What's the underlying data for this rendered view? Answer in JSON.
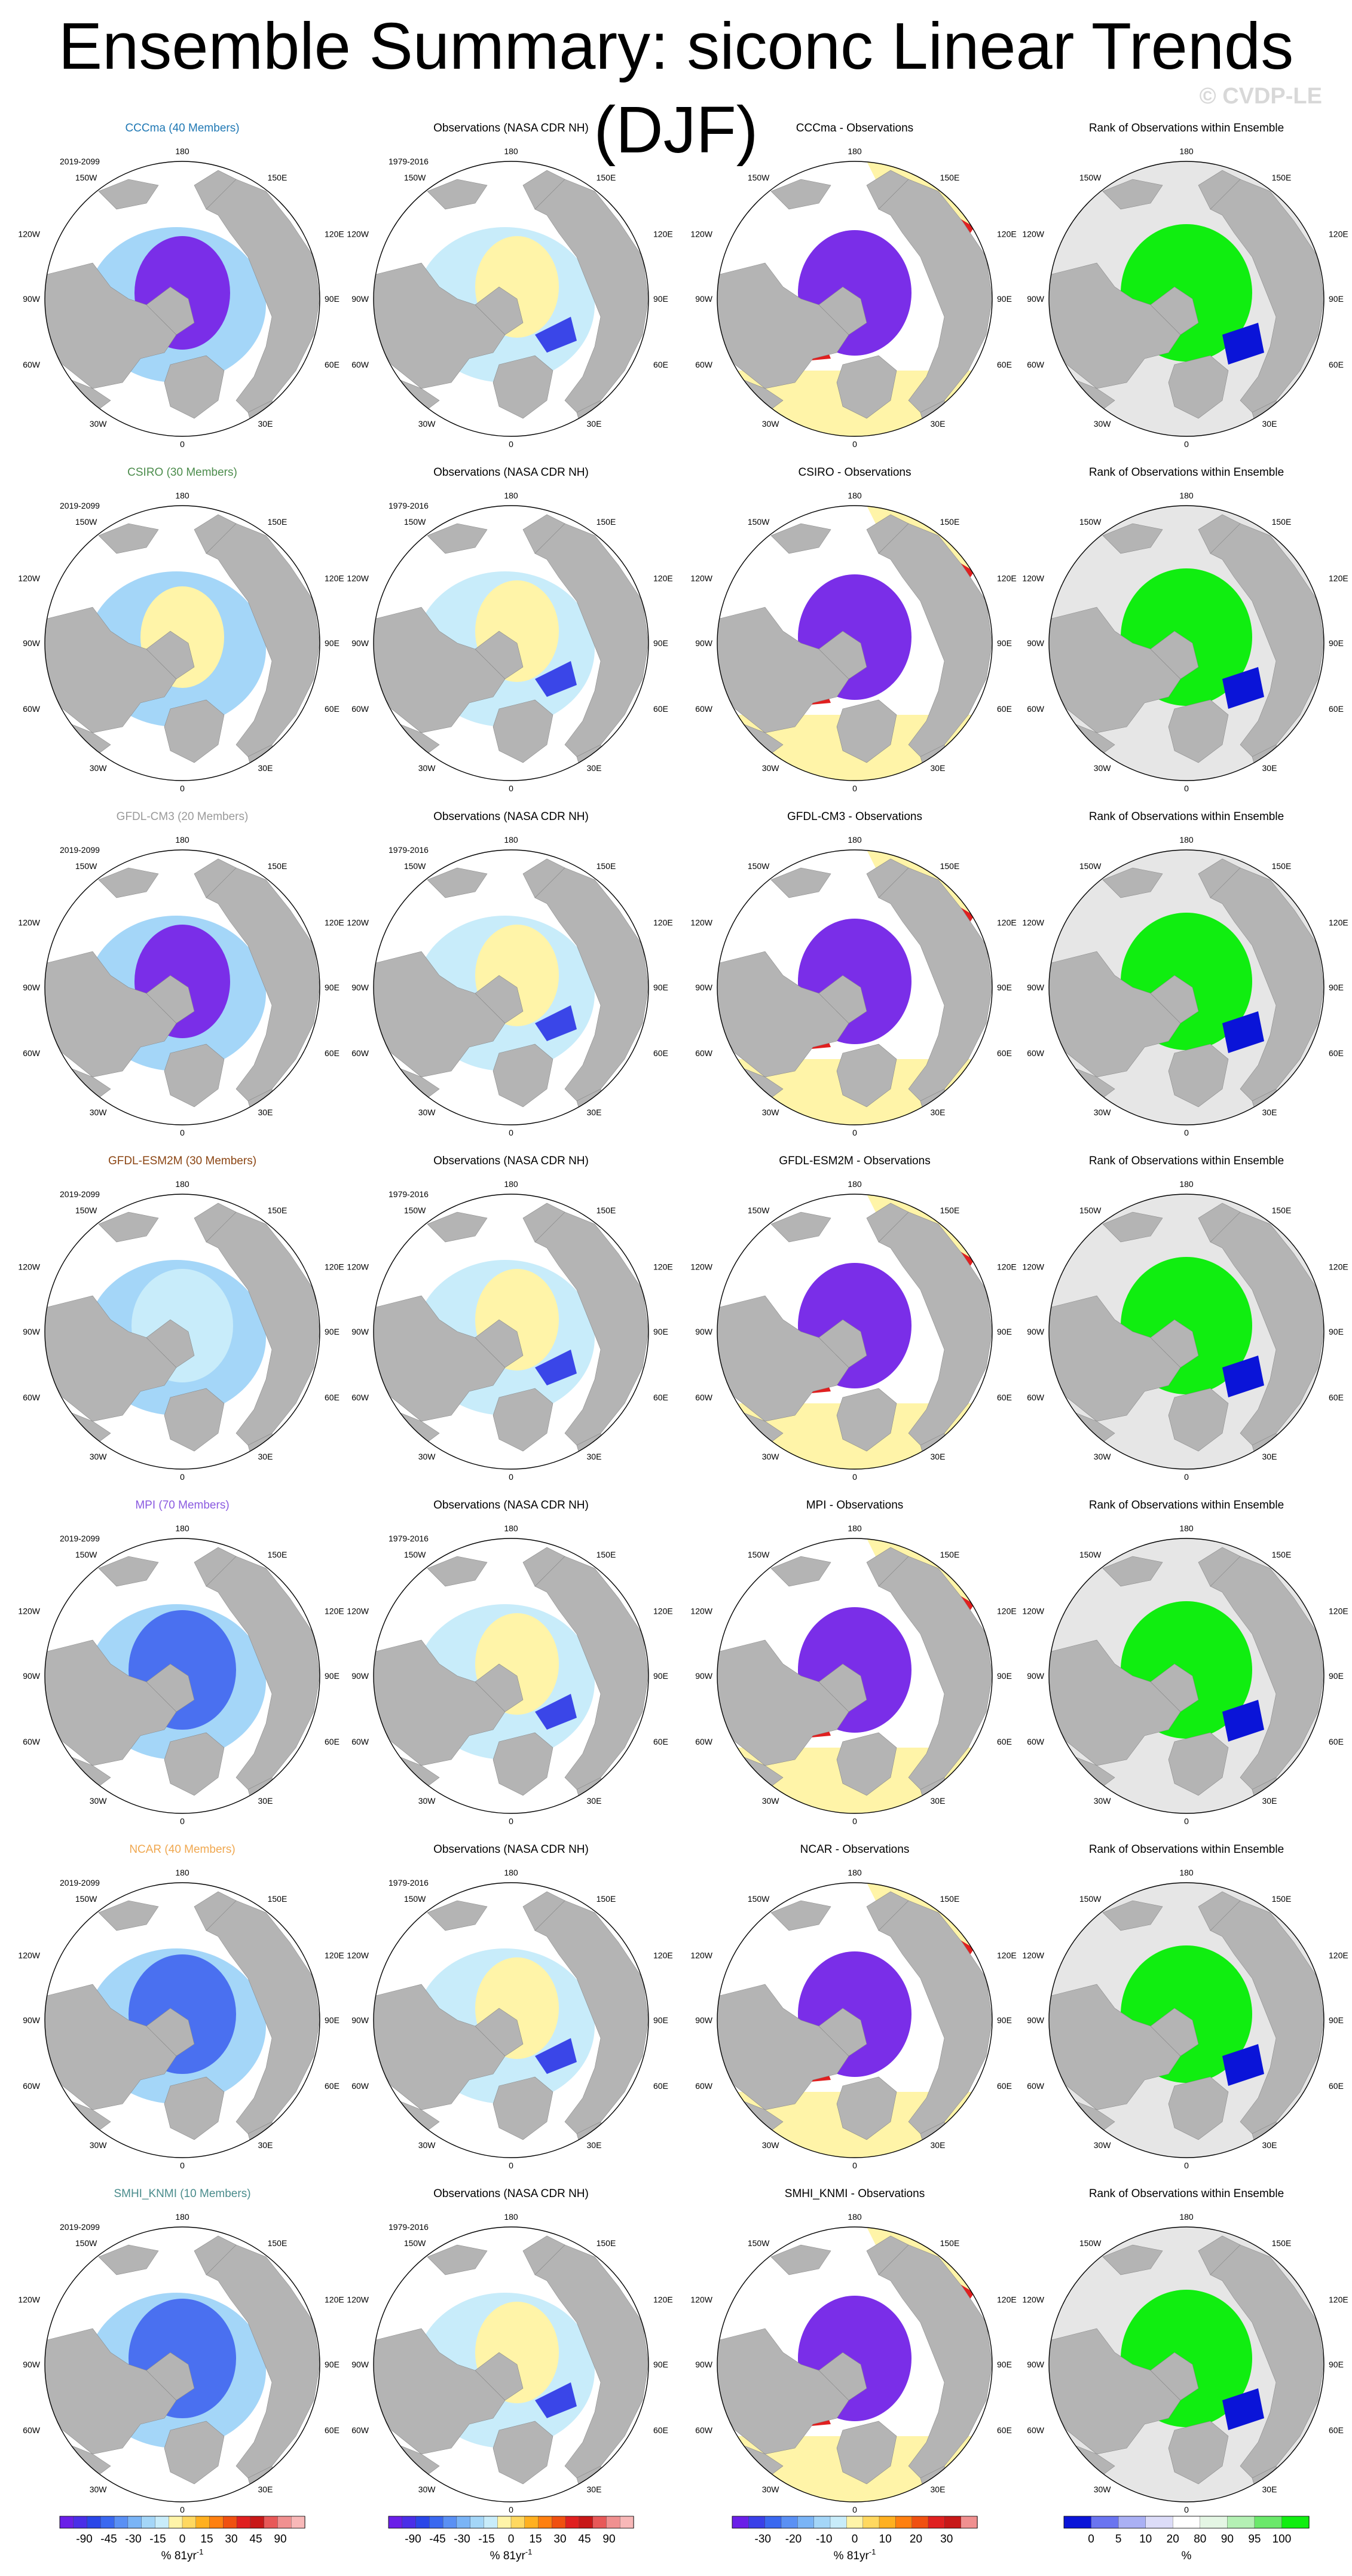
{
  "title": "Ensemble Summary: siconc Linear Trends (DJF)",
  "credit": "© CVDP-LE",
  "colors": {
    "land": "#b4b4b4",
    "ocean": "#ffffff",
    "rank_bg": "#e6e6e6",
    "title_colors": {
      "CCCma": "#1f78b4",
      "CSIRO": "#4c8c4c",
      "GFDL-CM3": "#9a9a9a",
      "GFDL-ESM2M": "#8b4513",
      "MPI": "#8a5ae0",
      "NCAR": "#f0a850",
      "SMHI_KNMI": "#4a8c8c"
    }
  },
  "grid_labels": {
    "top": "180",
    "top_left": "150W",
    "top_right": "150E",
    "upper_left": "120W",
    "upper_right": "120E",
    "left": "90W",
    "right": "90E",
    "lower_left": "60W",
    "lower_right": "60E",
    "bottom_left": "30W",
    "bottom_right": "30E",
    "bottom": "0"
  },
  "rows": [
    {
      "model": "CCCma",
      "model_title": "CCCma (40 Members)",
      "model_period": "2019-2099",
      "obs_title": "Observations (NASA CDR NH)",
      "obs_period": "1979-2016",
      "diff_title": "CCCma - Observations",
      "rank_title": "Rank of Observations within Ensemble",
      "model_pattern": "strong-central"
    },
    {
      "model": "CSIRO",
      "model_title": "CSIRO (30 Members)",
      "model_period": "2019-2099",
      "obs_title": "Observations (NASA CDR NH)",
      "obs_period": "1979-2016",
      "diff_title": "CSIRO - Observations",
      "rank_title": "Rank of Observations within Ensemble",
      "model_pattern": "weak-central"
    },
    {
      "model": "GFDL-CM3",
      "model_title": "GFDL-CM3 (20 Members)",
      "model_period": "2019-2099",
      "obs_title": "Observations (NASA CDR NH)",
      "obs_period": "1979-2016",
      "diff_title": "GFDL-CM3 - Observations",
      "rank_title": "Rank of Observations within Ensemble",
      "model_pattern": "strong-central"
    },
    {
      "model": "GFDL-ESM2M",
      "model_title": "GFDL-ESM2M (30 Members)",
      "model_period": "2019-2099",
      "obs_title": "Observations (NASA CDR NH)",
      "obs_period": "1979-2016",
      "diff_title": "GFDL-ESM2M - Observations",
      "rank_title": "Rank of Observations within Ensemble",
      "model_pattern": "light-central"
    },
    {
      "model": "MPI",
      "model_title": "MPI (70 Members)",
      "model_period": "2019-2099",
      "obs_title": "Observations (NASA CDR NH)",
      "obs_period": "1979-2016",
      "diff_title": "MPI - Observations",
      "rank_title": "Rank of Observations within Ensemble",
      "model_pattern": "medium-central"
    },
    {
      "model": "NCAR",
      "model_title": "NCAR (40 Members)",
      "model_period": "2019-2099",
      "obs_title": "Observations (NASA CDR NH)",
      "obs_period": "1979-2016",
      "diff_title": "NCAR - Observations",
      "rank_title": "Rank of Observations within Ensemble",
      "model_pattern": "medium-central"
    },
    {
      "model": "SMHI_KNMI",
      "model_title": "SMHI_KNMI (10 Members)",
      "model_period": "2019-2099",
      "obs_title": "Observations (NASA CDR NH)",
      "obs_period": "1979-2016",
      "diff_title": "SMHI_KNMI - Observations",
      "rank_title": "Rank of Observations within Ensemble",
      "model_pattern": "medium-central"
    }
  ],
  "legends": [
    {
      "name": "model-trend-legend",
      "ticks": [
        "-90",
        "-45",
        "-30",
        "-15",
        "0",
        "15",
        "30",
        "45",
        "90"
      ],
      "unit": "% 81yr",
      "unit_sup": "-1",
      "colors": [
        "#6a1fe8",
        "#4a2ee8",
        "#2a46e8",
        "#3a68f0",
        "#5a90f4",
        "#7ab4f6",
        "#a4d6f8",
        "#c8ecfa",
        "#fff4a8",
        "#ffd860",
        "#ffb020",
        "#ff8010",
        "#f05010",
        "#e02020",
        "#c81818",
        "#e85858",
        "#f09090",
        "#f8b8b8"
      ]
    },
    {
      "name": "obs-trend-legend",
      "ticks": [
        "-90",
        "-45",
        "-30",
        "-15",
        "0",
        "15",
        "30",
        "45",
        "90"
      ],
      "unit": "% 81yr",
      "unit_sup": "-1",
      "colors": [
        "#6a1fe8",
        "#4a2ee8",
        "#2a46e8",
        "#3a68f0",
        "#5a90f4",
        "#7ab4f6",
        "#a4d6f8",
        "#c8ecfa",
        "#fff4a8",
        "#ffd860",
        "#ffb020",
        "#ff8010",
        "#f05010",
        "#e02020",
        "#c81818",
        "#e85858",
        "#f09090",
        "#f8b8b8"
      ]
    },
    {
      "name": "diff-trend-legend",
      "ticks": [
        "-30",
        "-20",
        "-10",
        "0",
        "10",
        "20",
        "30"
      ],
      "unit": "% 81yr",
      "unit_sup": "-1",
      "colors": [
        "#6a1fe8",
        "#3a40e8",
        "#3a68f0",
        "#5a90f4",
        "#7ab4f6",
        "#a4d6f8",
        "#c8ecfa",
        "#fff4a8",
        "#ffd860",
        "#ffb020",
        "#ff8010",
        "#f05010",
        "#e02020",
        "#c81818",
        "#f09090"
      ]
    },
    {
      "name": "rank-legend",
      "ticks": [
        "0",
        "5",
        "10",
        "20",
        "80",
        "90",
        "95",
        "100"
      ],
      "unit": "%",
      "unit_sup": "",
      "colors": [
        "#0a14d8",
        "#6a74f0",
        "#aab0f4",
        "#dcdcf8",
        "#ffffff",
        "#e4f6e4",
        "#b4f0b4",
        "#6ae86a",
        "#10ee10"
      ]
    }
  ]
}
